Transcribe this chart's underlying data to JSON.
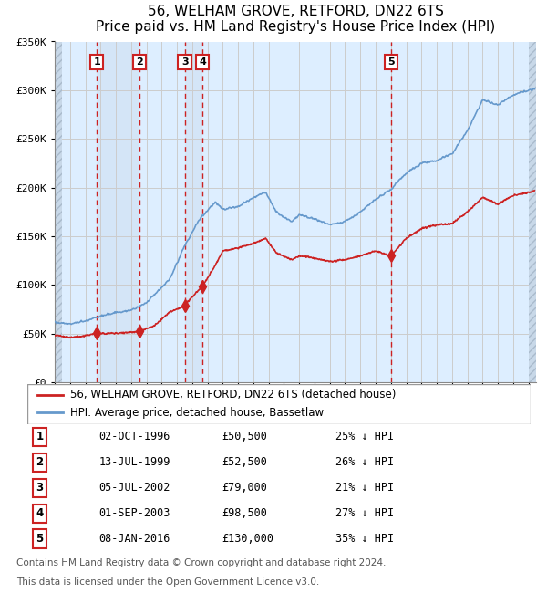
{
  "title": "56, WELHAM GROVE, RETFORD, DN22 6TS",
  "subtitle": "Price paid vs. HM Land Registry's House Price Index (HPI)",
  "xlabel": "",
  "ylabel": "",
  "ylim": [
    0,
    350000
  ],
  "yticks": [
    0,
    50000,
    100000,
    150000,
    200000,
    250000,
    300000,
    350000
  ],
  "ytick_labels": [
    "£0",
    "£50K",
    "£100K",
    "£150K",
    "£200K",
    "£250K",
    "£300K",
    "£350K"
  ],
  "xlim_start": 1994.0,
  "xlim_end": 2025.5,
  "hpi_color": "#6699cc",
  "price_color": "#cc2222",
  "sale_marker_color": "#cc2222",
  "bg_color": "#ddeeff",
  "hatch_color": "#bbccdd",
  "grid_color": "#cccccc",
  "vline_color": "#cc2222",
  "sale_dates_x": [
    1996.75,
    1999.54,
    2002.51,
    2003.67,
    2016.03
  ],
  "sale_prices": [
    50500,
    52500,
    79000,
    98500,
    130000
  ],
  "sale_labels": [
    "1",
    "2",
    "3",
    "4",
    "5"
  ],
  "legend_line1": "56, WELHAM GROVE, RETFORD, DN22 6TS (detached house)",
  "legend_line2": "HPI: Average price, detached house, Bassetlaw",
  "table_data": [
    [
      "1",
      "02-OCT-1996",
      "£50,500",
      "25% ↓ HPI"
    ],
    [
      "2",
      "13-JUL-1999",
      "£52,500",
      "26% ↓ HPI"
    ],
    [
      "3",
      "05-JUL-2002",
      "£79,000",
      "21% ↓ HPI"
    ],
    [
      "4",
      "01-SEP-2003",
      "£98,500",
      "27% ↓ HPI"
    ],
    [
      "5",
      "08-JAN-2016",
      "£130,000",
      "35% ↓ HPI"
    ]
  ],
  "footnote1": "Contains HM Land Registry data © Crown copyright and database right 2024.",
  "footnote2": "This data is licensed under the Open Government Licence v3.0.",
  "title_fontsize": 11,
  "subtitle_fontsize": 10,
  "tick_fontsize": 8,
  "legend_fontsize": 8.5,
  "table_fontsize": 8.5,
  "footnote_fontsize": 7.5
}
